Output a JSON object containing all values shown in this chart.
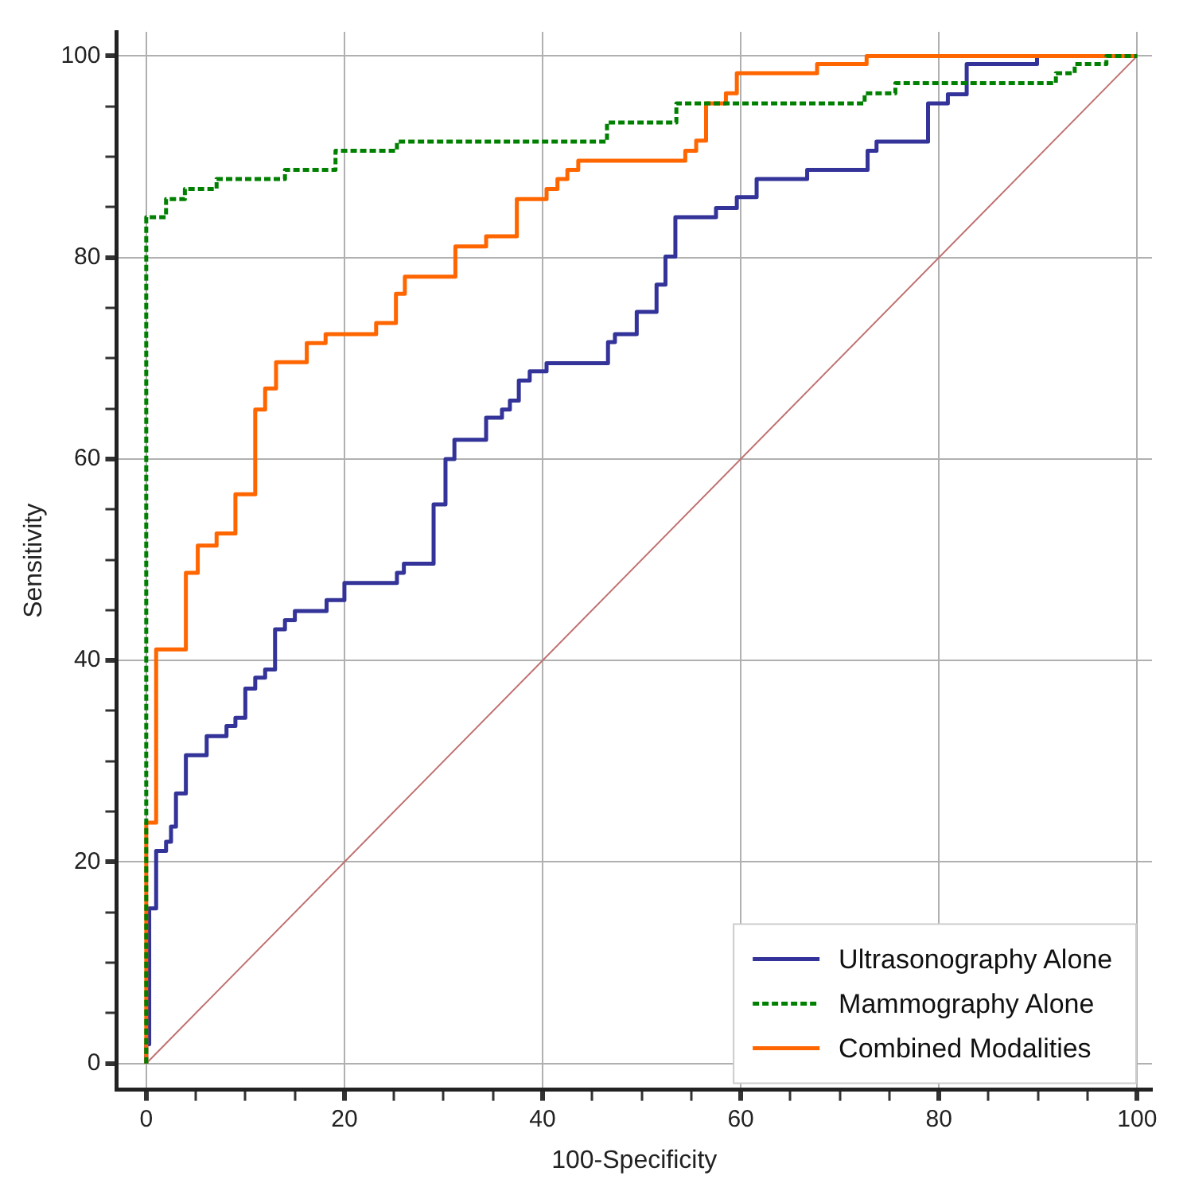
{
  "chart_data": {
    "type": "step",
    "xlabel": "100-Specificity",
    "ylabel": "Sensitivity",
    "xlim": [
      -3,
      101.5
    ],
    "ylim": [
      -2.6,
      102.4
    ],
    "xticks": [
      0,
      {
        "value": 5,
        "label": null
      },
      {
        "value": 10,
        "label": null
      },
      {
        "value": 15,
        "label": null
      },
      20,
      {
        "value": 25,
        "label": null
      },
      {
        "value": 30,
        "label": null
      },
      {
        "value": 35,
        "label": null
      },
      40,
      {
        "value": 45,
        "label": null
      },
      {
        "value": 50,
        "label": null
      },
      {
        "value": 55,
        "label": null
      },
      60,
      {
        "value": 65,
        "label": null
      },
      {
        "value": 70,
        "label": null
      },
      {
        "value": 75,
        "label": null
      },
      80,
      {
        "value": 85,
        "label": null
      },
      {
        "value": 90,
        "label": null
      },
      {
        "value": 95,
        "label": null
      },
      100
    ],
    "yticks": [
      0,
      {
        "value": 5,
        "label": null
      },
      {
        "value": 10,
        "label": null
      },
      {
        "value": 15,
        "label": null
      },
      20,
      {
        "value": 25,
        "label": null
      },
      {
        "value": 30,
        "label": null
      },
      {
        "value": 35,
        "label": null
      },
      40,
      {
        "value": 45,
        "label": null
      },
      {
        "value": 50,
        "label": null
      },
      {
        "value": 55,
        "label": null
      },
      60,
      {
        "value": 65,
        "label": null
      },
      {
        "value": 70,
        "label": null
      },
      {
        "value": 75,
        "label": null
      },
      80,
      {
        "value": 85,
        "label": null
      },
      {
        "value": 90,
        "label": null
      },
      {
        "value": 95,
        "label": null
      },
      100
    ],
    "grid": true,
    "legend": "bottom right",
    "marker": "none",
    "series": [
      {
        "name": "Ultrasonography Alone",
        "color": "#333399",
        "line_style": "solid",
        "x": [
          0,
          0.3,
          1,
          2,
          2.5,
          3,
          4,
          6.1,
          8.1,
          9,
          10,
          11,
          12,
          13,
          14,
          15,
          18.2,
          20,
          25.3,
          26,
          29,
          30.2,
          31.1,
          34.3,
          35.9,
          36.7,
          37.6,
          38.7,
          40.4,
          46.6,
          47.3,
          49.5,
          51.5,
          52.4,
          53.4,
          57.5,
          59.6,
          61.6,
          66.7,
          72.8,
          73.7,
          78.9,
          80.9,
          82.8,
          89.9,
          93.8,
          100
        ],
        "values": [
          0,
          1.9,
          15.4,
          21.1,
          22,
          23.5,
          26.8,
          30.6,
          32.5,
          33.5,
          34.3,
          37.2,
          38.3,
          39.1,
          43.1,
          44,
          44.9,
          46,
          47.7,
          48.7,
          49.6,
          55.5,
          60,
          61.9,
          64.1,
          64.9,
          65.8,
          67.8,
          68.7,
          69.5,
          71.6,
          72.4,
          74.6,
          77.3,
          80.1,
          84,
          84.9,
          86,
          87.8,
          88.7,
          90.6,
          91.5,
          95.3,
          96.2,
          99.2,
          100,
          100
        ]
      },
      {
        "name": "Mammography Alone",
        "color": "#008000",
        "line_style": "dashed",
        "x": [
          0,
          0,
          2,
          3.9,
          7.1,
          14,
          19.1,
          25.3,
          46.5,
          53.5,
          72.5,
          75.6,
          91.8,
          93.7,
          96.9,
          100
        ],
        "values": [
          0,
          79.3,
          84,
          85.8,
          86.8,
          87.8,
          88.7,
          90.6,
          91.5,
          93.4,
          95.3,
          96.3,
          97.3,
          98.3,
          99.2,
          100
        ]
      },
      {
        "name": "Combined Modalities",
        "color": "#ff6600",
        "line_style": "solid",
        "x": [
          0,
          0,
          1,
          4,
          5.2,
          7.1,
          9,
          11,
          12,
          13.1,
          16.2,
          18.1,
          23.2,
          25.2,
          26.1,
          31.2,
          34.3,
          37.4,
          40.4,
          41.5,
          42.5,
          43.6,
          54.4,
          55.5,
          56.5,
          58.5,
          59.6,
          67.7,
          72.7,
          91.9,
          100
        ],
        "values": [
          0,
          19.2,
          23.9,
          41.1,
          48.7,
          51.4,
          52.6,
          56.5,
          64.9,
          67,
          69.6,
          71.5,
          72.4,
          73.5,
          76.4,
          78.1,
          81.1,
          82.1,
          85.8,
          86.8,
          87.8,
          88.7,
          89.6,
          90.6,
          91.6,
          95.3,
          96.3,
          98.3,
          99.2,
          100,
          100
        ]
      },
      {
        "type": "line",
        "color": "#c07070",
        "line_style": "solid",
        "x": [
          0,
          100
        ],
        "values": [
          0,
          100
        ]
      }
    ]
  }
}
